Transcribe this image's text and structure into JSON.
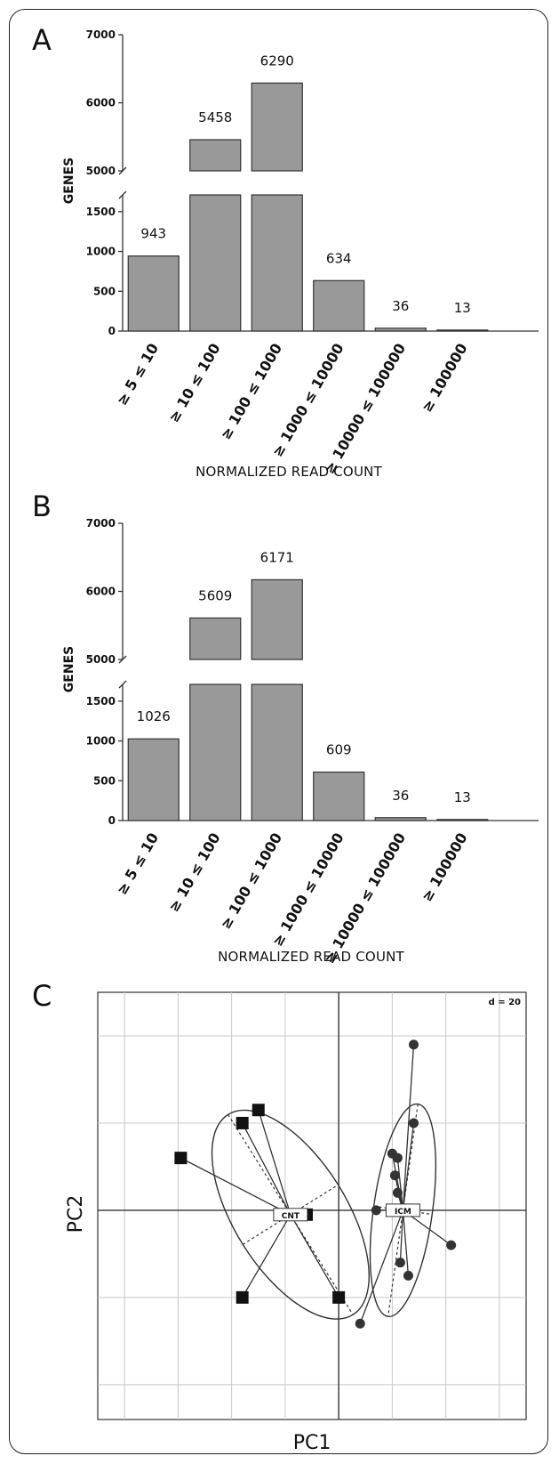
{
  "chart_data": [
    {
      "panel": "A",
      "type": "bar",
      "categories": [
        "≥ 5 ≤ 10",
        "≥ 10 ≤ 100",
        "≥ 100 ≤ 1000",
        "≥ 1000 ≤ 10000",
        "≥ 10000 ≤ 100000",
        "≥ 100000"
      ],
      "values": [
        943,
        5458,
        6290,
        634,
        36,
        13
      ],
      "value_labels": [
        "943",
        "5458",
        "6290",
        "634",
        "36",
        "13"
      ],
      "xlabel": "NORMALIZED READ COUNT",
      "ylabel": "GENES",
      "axis_break": true,
      "lower_range": [
        0,
        1800
      ],
      "upper_range": [
        5000,
        7000
      ],
      "lower_ticks": [
        0,
        500,
        1000,
        1500
      ],
      "upper_ticks": [
        5000,
        6000,
        7000
      ]
    },
    {
      "panel": "B",
      "type": "bar",
      "categories": [
        "≥ 5 ≤ 10",
        "≥ 10 ≤ 100",
        "≥ 100 ≤ 1000",
        "≥ 1000 ≤ 10000",
        "≥ 10000 ≤ 100000",
        "≥ 100000"
      ],
      "values": [
        1026,
        5609,
        6171,
        609,
        36,
        13
      ],
      "value_labels": [
        "1026",
        "5609",
        "6171",
        "609",
        "36",
        "13"
      ],
      "xlabel": "NORMALIZED READ COUNT",
      "ylabel": "GENES",
      "axis_break": true,
      "lower_range": [
        0,
        1800
      ],
      "upper_range": [
        5000,
        7000
      ],
      "lower_ticks": [
        0,
        500,
        1000,
        1500
      ],
      "upper_ticks": [
        5000,
        6000,
        7000
      ]
    },
    {
      "panel": "C",
      "type": "scatter",
      "xlabel": "PC1",
      "ylabel": "PC2",
      "scale_label": "d = 20",
      "grid": true,
      "xlim": [
        -90,
        70
      ],
      "ylim": [
        -48,
        50
      ],
      "series": [
        {
          "name": "CNT",
          "marker": "square",
          "centroid": [
            -18,
            -1
          ],
          "points": [
            [
              -59,
              12
            ],
            [
              -36,
              20
            ],
            [
              -30,
              23
            ],
            [
              -16,
              -1
            ],
            [
              -12,
              -1
            ],
            [
              -36,
              -20
            ],
            [
              0,
              -20
            ]
          ],
          "ellipse": {
            "rx": 21,
            "ry": 44,
            "angle": -32
          }
        },
        {
          "name": "ICM",
          "marker": "circle",
          "centroid": [
            24,
            0
          ],
          "points": [
            [
              28,
              38
            ],
            [
              28,
              20
            ],
            [
              20,
              13
            ],
            [
              22,
              12
            ],
            [
              21,
              8
            ],
            [
              22,
              4
            ],
            [
              14,
              0
            ],
            [
              42,
              -8
            ],
            [
              23,
              -12
            ],
            [
              26,
              -15
            ],
            [
              8,
              -26
            ]
          ],
          "ellipse": {
            "rx": 11,
            "ry": 40,
            "angle": 8
          }
        }
      ]
    }
  ]
}
